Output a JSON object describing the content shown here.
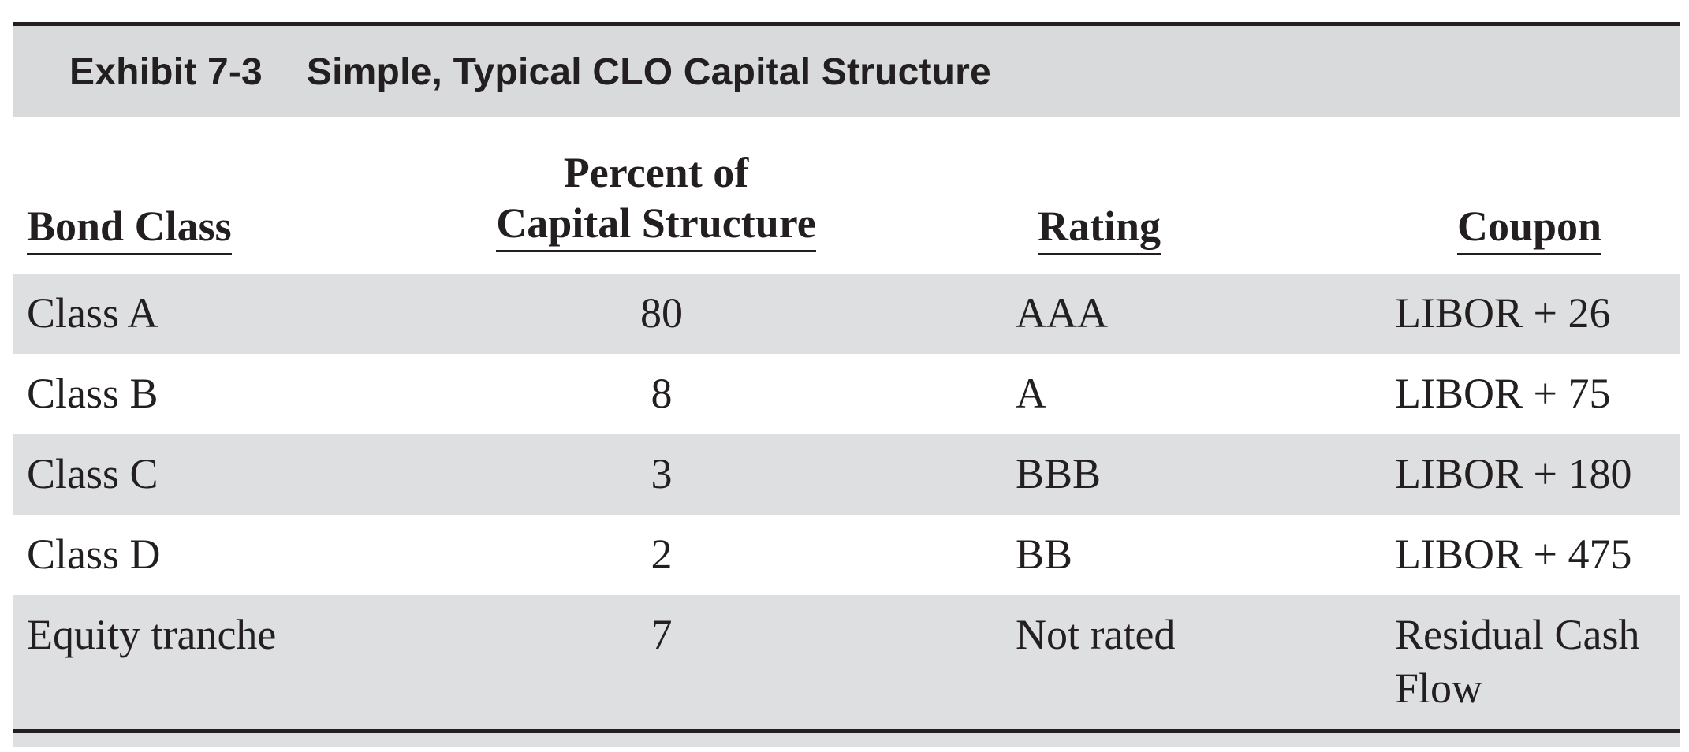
{
  "exhibit": {
    "label": "Exhibit 7-3",
    "title": "Simple, Typical CLO Capital Structure"
  },
  "table": {
    "headers": {
      "bond_class": "Bond Class",
      "percent_line1": "Percent of",
      "percent_line2": "Capital Structure",
      "rating": "Rating",
      "coupon": "Coupon"
    },
    "rows": [
      {
        "bond_class": "Class A",
        "percent": "80",
        "rating": "AAA",
        "coupon": "LIBOR + 26"
      },
      {
        "bond_class": "Class B",
        "percent": "8",
        "rating": "A",
        "coupon": "LIBOR + 75"
      },
      {
        "bond_class": "Class C",
        "percent": "3",
        "rating": "BBB",
        "coupon": "LIBOR + 180"
      },
      {
        "bond_class": "Class D",
        "percent": "2",
        "rating": "BB",
        "coupon": "LIBOR + 475"
      },
      {
        "bond_class": "Equity tranche",
        "percent": "7",
        "rating": "Not rated",
        "coupon": "Residual Cash Flow"
      }
    ]
  },
  "colors": {
    "shade": "#dedfe0",
    "title_bar": "#d9dadb",
    "text": "#231f20"
  }
}
